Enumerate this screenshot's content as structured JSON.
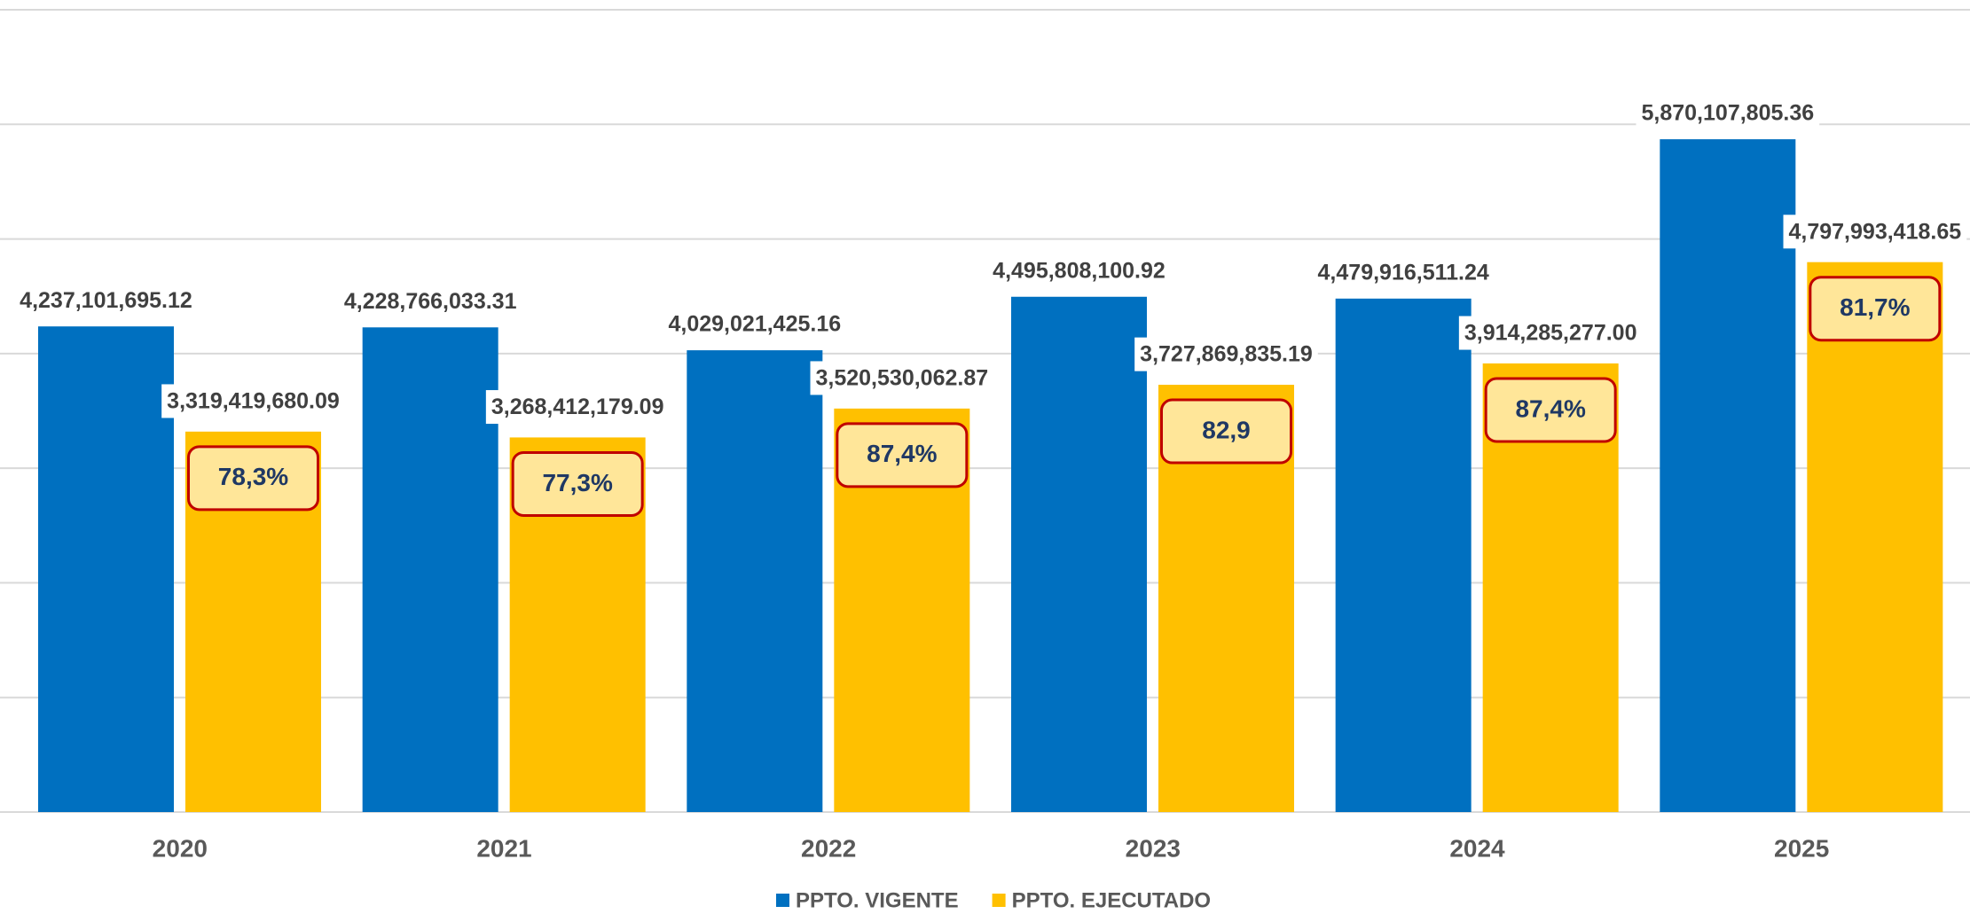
{
  "chart_data": {
    "type": "bar",
    "categories": [
      "2020",
      "2021",
      "2022",
      "2023",
      "2024",
      "2025"
    ],
    "series": [
      {
        "name": "PPTO. VIGENTE",
        "color": "#0070c0",
        "values": [
          4237101695.12,
          4228766033.31,
          4029021425.16,
          4495808100.92,
          4479916511.24,
          5870107805.36
        ],
        "value_labels": [
          "4,237,101,695.12",
          "4,228,766,033.31",
          "4,029,021,425.16",
          "4,495,808,100.92",
          "4,479,916,511.24",
          "5,870,107,805.36"
        ]
      },
      {
        "name": "PPTO. EJECUTADO",
        "color": "#ffc000",
        "values": [
          3319419680.09,
          3268412179.09,
          3520530062.87,
          3727869835.19,
          3914285277.0,
          4797993418.65
        ],
        "value_labels": [
          "3,319,419,680.09",
          "3,268,412,179.09",
          "3,520,530,062.87",
          "3,727,869,835.19",
          "3,914,285,277.00",
          "4,797,993,418.65"
        ]
      }
    ],
    "annotations": [
      "78,3%",
      "77,3%",
      "87,4%",
      "82,9",
      "87,4%",
      "81,7%"
    ],
    "ylim": [
      0,
      7000000000
    ],
    "yticks": [
      0,
      1000000000,
      2000000000,
      3000000000,
      4000000000,
      5000000000,
      6000000000,
      7000000000
    ],
    "grid": true,
    "legend": "bottom"
  }
}
